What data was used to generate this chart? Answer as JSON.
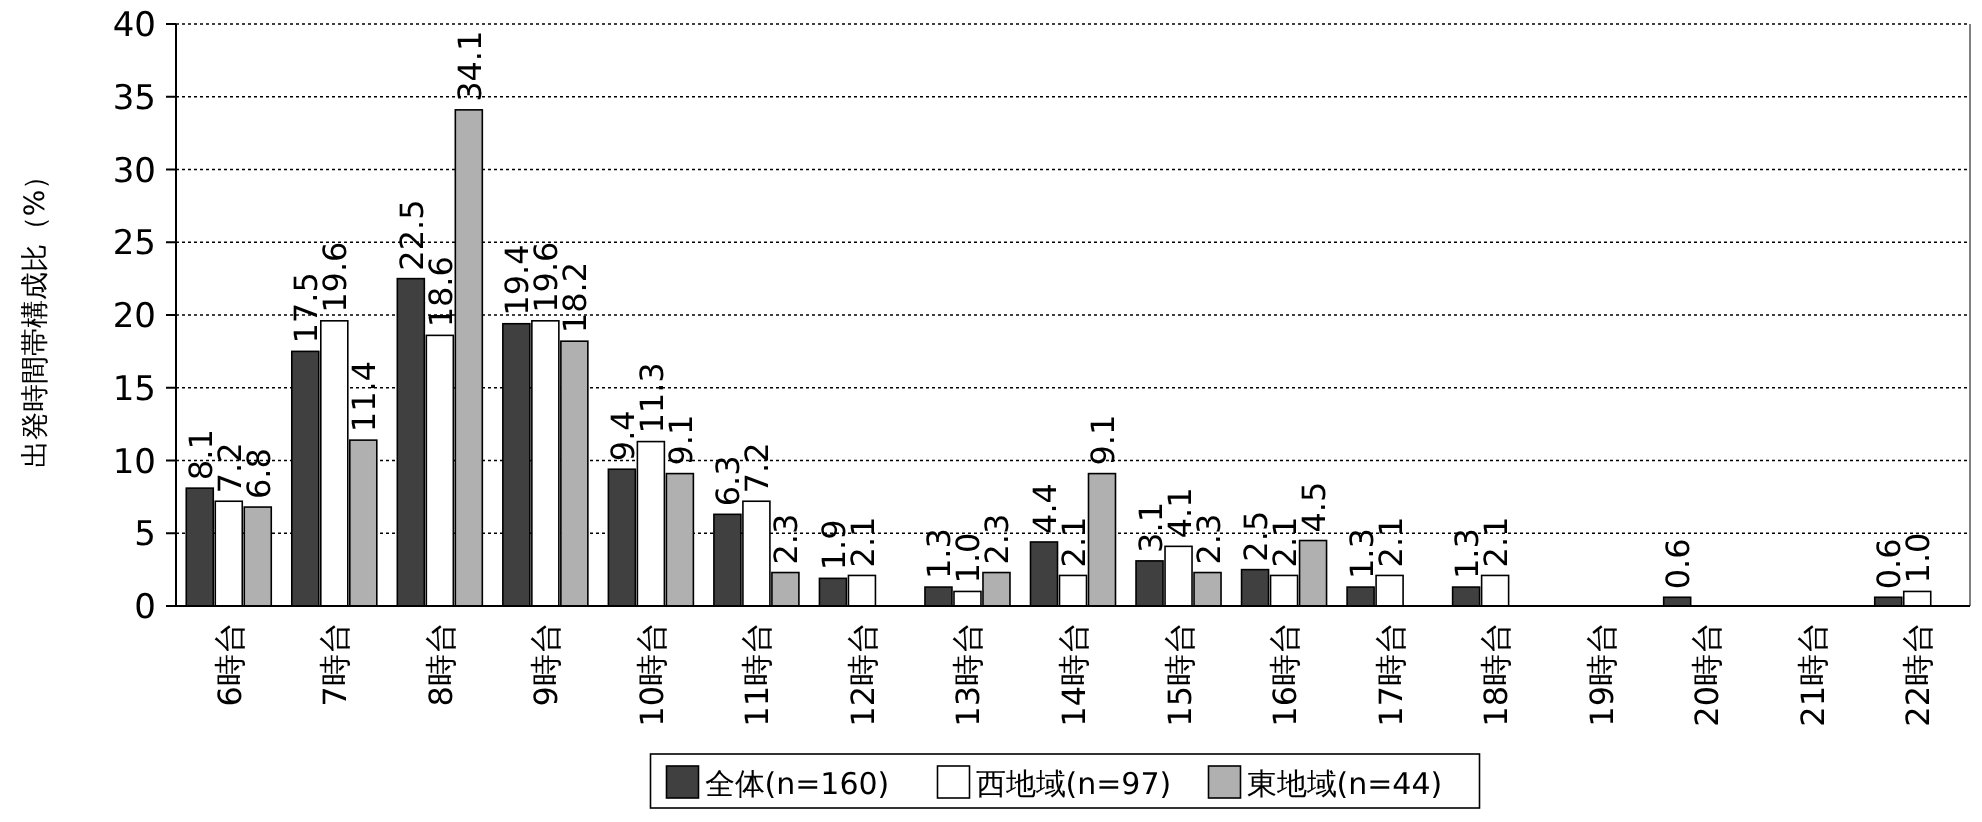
{
  "chart_data": {
    "type": "bar",
    "ylabel": "出発時間帯構成比（%）",
    "categories": [
      "6時台",
      "7時台",
      "8時台",
      "9時台",
      "10時台",
      "11時台",
      "12時台",
      "13時台",
      "14時台",
      "15時台",
      "16時台",
      "17時台",
      "18時台",
      "19時台",
      "20時台",
      "21時台",
      "22時台"
    ],
    "series": [
      {
        "name": "全体(n=160)",
        "color": "#404040",
        "values": [
          8.1,
          17.5,
          22.5,
          19.4,
          9.4,
          6.3,
          1.9,
          1.3,
          4.4,
          3.1,
          2.5,
          1.3,
          1.3,
          null,
          0.6,
          null,
          0.6
        ],
        "value_labels": [
          "8.1",
          "17.5",
          "22.5",
          "19.4",
          "9.4",
          "6.3",
          "1.9",
          "1.3",
          "4.4",
          "3.1",
          "2.5",
          "1.3",
          "1.3",
          null,
          "0.6",
          null,
          "0.6"
        ]
      },
      {
        "name": "西地域(n=97)",
        "color": "#ffffff",
        "values": [
          7.2,
          19.6,
          18.6,
          19.6,
          11.3,
          7.2,
          2.1,
          1.0,
          2.1,
          4.1,
          2.1,
          2.1,
          2.1,
          null,
          null,
          null,
          1.0
        ],
        "value_labels": [
          "7.2",
          "19.6",
          "18.6",
          "19.6",
          "11.3",
          "7.2",
          "2.1",
          "1.0",
          "2.1",
          "4.1",
          "2.1",
          "2.1",
          "2.1",
          null,
          null,
          null,
          "1.0"
        ]
      },
      {
        "name": "東地域(n=44)",
        "color": "#b0b0b0",
        "values": [
          6.8,
          11.4,
          34.1,
          18.2,
          9.1,
          2.3,
          null,
          2.3,
          9.1,
          2.3,
          4.5,
          null,
          null,
          null,
          null,
          null,
          null
        ],
        "value_labels": [
          "6.8",
          "11.4",
          "34.1",
          "18.2",
          "9.1",
          "2.3",
          null,
          "2.3",
          "9.1",
          "2.3",
          "4.5",
          null,
          null,
          null,
          null,
          null,
          null
        ]
      }
    ],
    "ylim": [
      0,
      40
    ],
    "yticks": [
      0,
      5,
      10,
      15,
      20,
      25,
      30,
      35,
      40
    ],
    "grid": "y",
    "legend": "bottom"
  }
}
